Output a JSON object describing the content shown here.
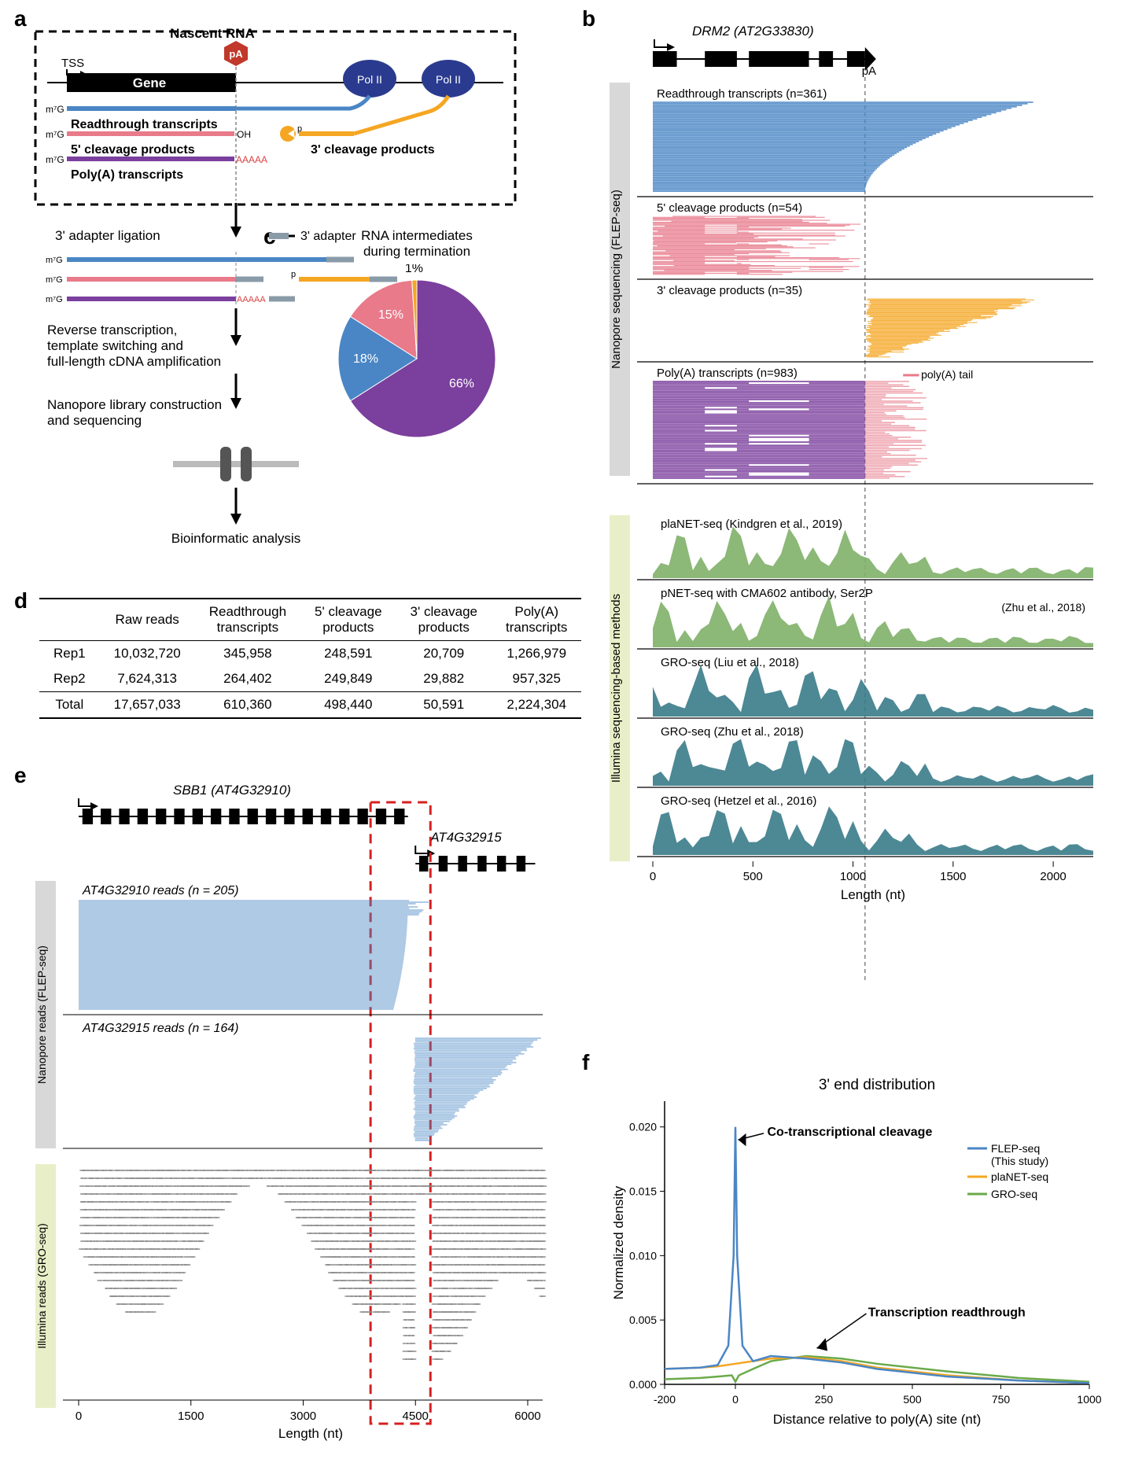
{
  "labels": {
    "a": "a",
    "b": "b",
    "c": "c",
    "d": "d",
    "e": "e",
    "f": "f"
  },
  "panelA": {
    "nascent": "Nascent RNA",
    "tss": "TSS",
    "pA": "pA",
    "gene": "Gene",
    "polII": "Pol II",
    "m7g": "m⁷G",
    "readthrough": "Readthrough transcripts",
    "cleave5": "5' cleavage products",
    "cleave3": "3' cleavage products",
    "polyA": "Poly(A) transcripts",
    "oh": "OH",
    "p": "p",
    "aaaa": "AAAAA",
    "step1": "3' adapter ligation",
    "adapter": "3' adapter",
    "step2": "Reverse transcription,\ntemplate switching and\nfull-length cDNA amplification",
    "step3": "Nanopore library construction\nand sequencing",
    "step4": "Bioinformatic analysis",
    "colors": {
      "readthrough": "#4a86c5",
      "cleave5": "#e87a8a",
      "cleave3": "#f5a623",
      "polyA": "#7b3f9d",
      "polII": "#2a3b8f",
      "adapter": "#8a9ba8",
      "gene": "#000",
      "aaaa": "#d94545"
    }
  },
  "panelB": {
    "gene": "DRM2 (AT2G33830)",
    "geneLabel": "DRM2",
    "geneId": "(AT2G33830)",
    "tracks": [
      {
        "label": "Readthrough transcripts (n=361)",
        "color": "#4a86c5",
        "start": 0,
        "endMax": 1900
      },
      {
        "label": "5' cleavage products (n=54)",
        "color": "#e87a8a",
        "start": 0,
        "endMax": 1050
      },
      {
        "label": "3' cleavage products (n=35)",
        "color": "#f5a623",
        "start": 1050,
        "endMax": 1850
      },
      {
        "label": "Poly(A) transcripts (n=983)",
        "color": "#7b3f9d",
        "start": 0,
        "endMax": 1150
      }
    ],
    "polyATailLabel": "poly(A) tail",
    "polyATailColor": "#e87a8a",
    "sideLabel": "Nanopore sequencing (FLEP-seq)",
    "illuminaLabel": "Illumina sequencing-based methods",
    "illuminaTracks": [
      {
        "label": "plaNET-seq (Kindgren et al., 2019)",
        "color": "#7fb069"
      },
      {
        "label": "pNET-seq with CMA602 antibody, Ser2P",
        "cite": "(Zhu et al., 2018)",
        "color": "#7fb069"
      },
      {
        "label": "GRO-seq (Liu et al., 2018)",
        "color": "#3a7b8a"
      },
      {
        "label": "GRO-seq (Zhu et al., 2018)",
        "color": "#3a7b8a"
      },
      {
        "label": "GRO-seq (Hetzel et al., 2016)",
        "color": "#3a7b8a"
      }
    ],
    "pA": "pA",
    "xaxis": {
      "label": "Length (nt)",
      "ticks": [
        0,
        500,
        1000,
        1500,
        2000
      ],
      "max": 2200
    }
  },
  "panelC": {
    "title": "RNA intermediates\nduring termination",
    "slices": [
      {
        "label": "66%",
        "value": 66,
        "color": "#7b3f9d"
      },
      {
        "label": "18%",
        "value": 18,
        "color": "#4a86c5"
      },
      {
        "label": "15%",
        "value": 15,
        "color": "#e87a8a"
      },
      {
        "label": "1%",
        "value": 1,
        "color": "#f5a623"
      }
    ]
  },
  "panelD": {
    "columns": [
      "",
      "Raw reads",
      "Readthrough\ntranscripts",
      "5' cleavage\nproducts",
      "3' cleavage\nproducts",
      "Poly(A)\ntranscripts"
    ],
    "rows": [
      [
        "Rep1",
        "10,032,720",
        "345,958",
        "248,591",
        "20,709",
        "1,266,979"
      ],
      [
        "Rep2",
        "7,624,313",
        "264,402",
        "249,849",
        "29,882",
        "957,325"
      ]
    ],
    "total": [
      "Total",
      "17,657,033",
      "610,360",
      "498,440",
      "50,591",
      "2,224,304"
    ]
  },
  "panelE": {
    "gene1": "SBB1 (AT4G32910)",
    "gene2": "AT4G32915",
    "track1": "AT4G32910 reads (n = 205)",
    "track2": "AT4G32915 reads (n = 164)",
    "nanoLabel": "Nanopore reads (FLEP-seq)",
    "illuminaLabel": "Illumina reads (GRO-seq)",
    "xaxis": {
      "label": "Length (nt)",
      "ticks": [
        0,
        1500,
        3000,
        4500,
        6000
      ],
      "max": 6200
    },
    "colors": {
      "nano": "#4a86c5",
      "illumina": "#888"
    }
  },
  "panelF": {
    "title": "3' end distribution",
    "ylabel": "Normalized density",
    "xlabel": "Distance relative to poly(A) site (nt)",
    "annot1": "Co-transcriptional cleavage",
    "annot2": "Transcription readthrough",
    "legend": [
      {
        "label": "FLEP-seq\n(This study)",
        "color": "#4a86c5"
      },
      {
        "label": "plaNET-seq",
        "color": "#f5a623"
      },
      {
        "label": "GRO-seq",
        "color": "#6aaa4a"
      }
    ],
    "xaxis": {
      "ticks": [
        -200,
        0,
        250,
        500,
        750,
        1000
      ],
      "min": -200,
      "max": 1000
    },
    "yaxis": {
      "ticks": [
        0,
        0.005,
        0.01,
        0.015,
        0.02
      ],
      "max": 0.022
    },
    "series": {
      "flep": [
        [
          -200,
          0.0012
        ],
        [
          -100,
          0.0013
        ],
        [
          -50,
          0.0015
        ],
        [
          -20,
          0.003
        ],
        [
          -5,
          0.01
        ],
        [
          0,
          0.02
        ],
        [
          5,
          0.01
        ],
        [
          20,
          0.003
        ],
        [
          50,
          0.0018
        ],
        [
          100,
          0.0022
        ],
        [
          200,
          0.002
        ],
        [
          300,
          0.0017
        ],
        [
          400,
          0.0012
        ],
        [
          600,
          0.0006
        ],
        [
          800,
          0.0003
        ],
        [
          1000,
          0.0001
        ]
      ],
      "planet": [
        [
          -200,
          0.0012
        ],
        [
          -100,
          0.0013
        ],
        [
          -50,
          0.0014
        ],
        [
          0,
          0.0016
        ],
        [
          50,
          0.0018
        ],
        [
          100,
          0.002
        ],
        [
          200,
          0.0021
        ],
        [
          300,
          0.0018
        ],
        [
          400,
          0.0013
        ],
        [
          600,
          0.0007
        ],
        [
          800,
          0.0003
        ],
        [
          1000,
          0.0001
        ]
      ],
      "gro": [
        [
          -200,
          0.0004
        ],
        [
          -100,
          0.0005
        ],
        [
          -50,
          0.0006
        ],
        [
          -10,
          0.0007
        ],
        [
          0,
          0.0002
        ],
        [
          10,
          0.0007
        ],
        [
          50,
          0.0012
        ],
        [
          100,
          0.0018
        ],
        [
          200,
          0.0022
        ],
        [
          300,
          0.002
        ],
        [
          400,
          0.0016
        ],
        [
          600,
          0.001
        ],
        [
          800,
          0.0005
        ],
        [
          1000,
          0.0002
        ]
      ]
    }
  }
}
